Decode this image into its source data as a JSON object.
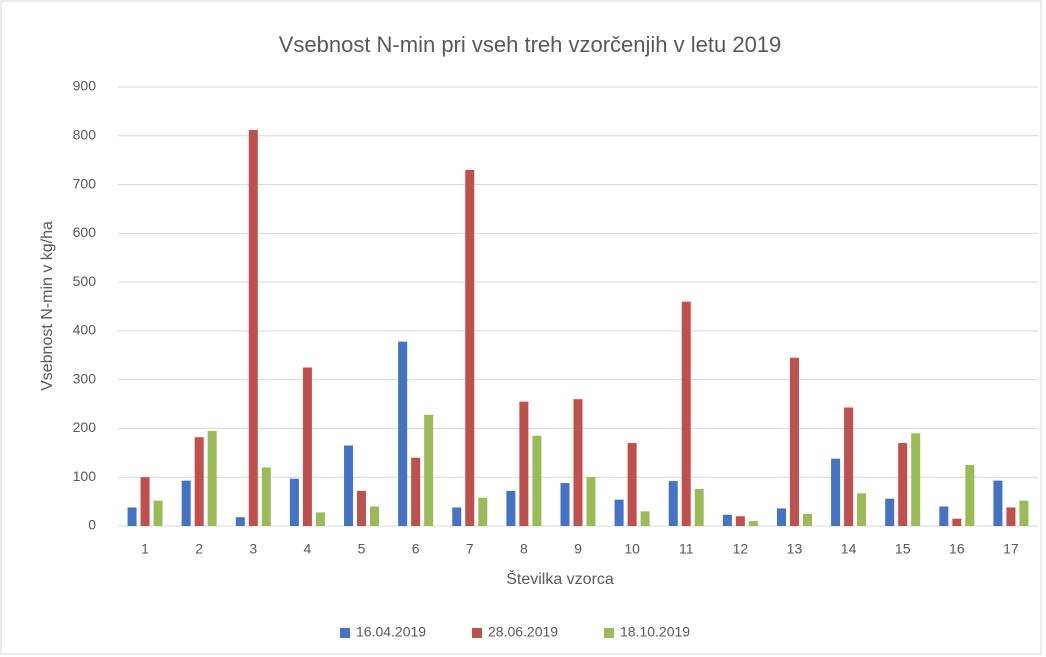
{
  "chart_data": {
    "type": "bar",
    "title": "Vsebnost N-min pri vseh treh vzorčenjih v letu 2019",
    "x_label": "Številka vzorca",
    "y_label": "Vsebnost N-min v kg/ha",
    "categories": [
      "1",
      "2",
      "3",
      "4",
      "5",
      "6",
      "7",
      "8",
      "9",
      "10",
      "11",
      "12",
      "13",
      "14",
      "15",
      "16",
      "17"
    ],
    "series": [
      {
        "name": "16.04.2019",
        "color": "#4472c4",
        "values": [
          38,
          93,
          18,
          97,
          165,
          378,
          38,
          72,
          88,
          54,
          92,
          23,
          36,
          138,
          56,
          40,
          93
        ]
      },
      {
        "name": "28.06.2019",
        "color": "#c0504d",
        "values": [
          100,
          182,
          812,
          325,
          72,
          140,
          730,
          255,
          260,
          170,
          460,
          20,
          345,
          243,
          170,
          15,
          38
        ]
      },
      {
        "name": "18.10.2019",
        "color": "#9bbb59",
        "values": [
          52,
          195,
          120,
          28,
          40,
          228,
          58,
          185,
          100,
          30,
          76,
          10,
          25,
          67,
          190,
          125,
          52
        ]
      }
    ],
    "ylim": [
      0,
      900
    ],
    "yticks": [
      0,
      100,
      200,
      300,
      400,
      500,
      600,
      700,
      800,
      900
    ],
    "grid": true,
    "legend": "bottom"
  }
}
